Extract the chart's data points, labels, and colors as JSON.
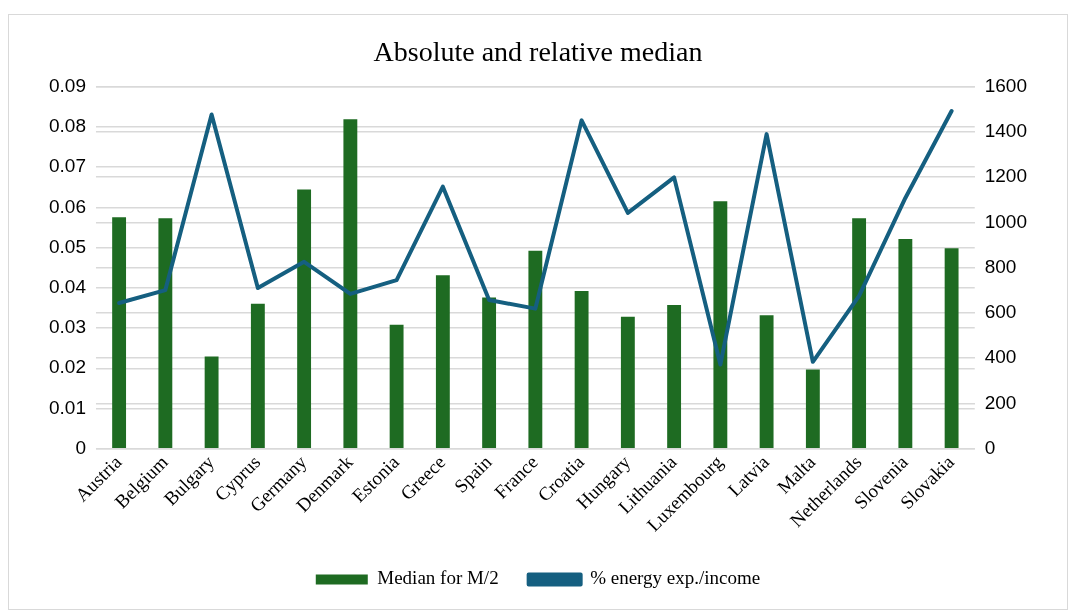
{
  "chart_data": {
    "type": "bar",
    "title": "Absolute and relative median",
    "categories": [
      "Austria",
      "Belgium",
      "Bulgary",
      "Cyprus",
      "Germany",
      "Denmark",
      "Estonia",
      "Greece",
      "Spain",
      "France",
      "Croatia",
      "Hungary",
      "Lithuania",
      "Luxembourg",
      "Latvia",
      "Malta",
      "Netherlands",
      "Slovenia",
      "Slovakia"
    ],
    "series": [
      {
        "name": "Median for M/2",
        "color": "#1e6b22",
        "values": [
          0.0575,
          0.0573,
          0.0229,
          0.036,
          0.0644,
          0.0819,
          0.0308,
          0.0431,
          0.0376,
          0.0492,
          0.0392,
          0.0328,
          0.0357,
          0.0615,
          0.0332,
          0.0197,
          0.0573,
          0.0521,
          0.0498
        ]
      },
      {
        "name": "% energy exp./income",
        "type": "line",
        "axis": "y2",
        "color": "#155f80",
        "values": [
          644,
          701,
          1477,
          710,
          826,
          684,
          745,
          1158,
          657,
          619,
          1451,
          1042,
          1199,
          372,
          1390,
          384,
          675,
          1108,
          1492
        ]
      }
    ],
    "ylim": [
      0,
      0.09
    ],
    "yticks": [
      0,
      0.01,
      0.02,
      0.03,
      0.04,
      0.05,
      0.06,
      0.07,
      0.08,
      0.09
    ],
    "y2lim": [
      0,
      1600
    ],
    "y2ticks": [
      0,
      200,
      400,
      600,
      800,
      1000,
      1200,
      1400,
      1600
    ],
    "grid": "y",
    "legend": "bottom",
    "marker": "none",
    "line_style": "solid"
  }
}
